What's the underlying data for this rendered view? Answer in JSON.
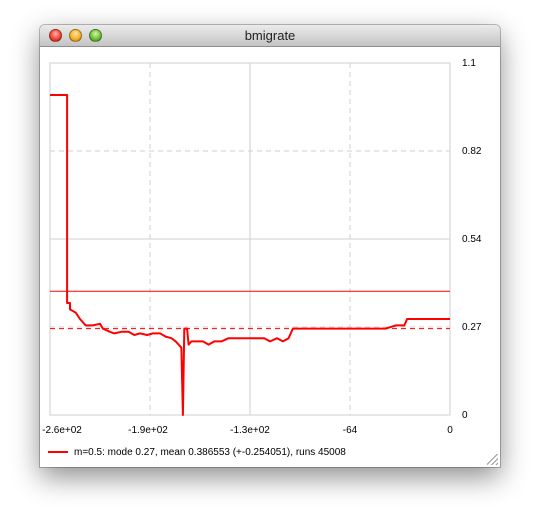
{
  "window": {
    "title": "bmigrate",
    "controls": [
      "close-button",
      "minimize-button",
      "zoom-button"
    ]
  },
  "chart_data": {
    "type": "line",
    "title": "",
    "xlabel": "",
    "ylabel": "",
    "x_ticks": [
      "-2.6e+02",
      "-1.9e+02",
      "-1.3e+02",
      "-64",
      "0"
    ],
    "y_ticks": [
      "0",
      "0.27",
      "0.54",
      "0.82",
      "1.1"
    ],
    "xlim": [
      -280,
      0
    ],
    "ylim": [
      0,
      1.1
    ],
    "grid": true,
    "series": [
      {
        "name": "m=0.5: mode 0.27, mean 0.386553 (+-0.254051), runs 45008",
        "color": "#ff0000",
        "points": [
          [
            -280,
            1.0
          ],
          [
            -268,
            1.0
          ],
          [
            -268,
            0.35
          ],
          [
            -266,
            0.35
          ],
          [
            -266,
            0.33
          ],
          [
            -262,
            0.32
          ],
          [
            -259,
            0.3
          ],
          [
            -255,
            0.28
          ],
          [
            -250,
            0.28
          ],
          [
            -245,
            0.285
          ],
          [
            -243,
            0.27
          ],
          [
            -238,
            0.26
          ],
          [
            -235,
            0.255
          ],
          [
            -230,
            0.26
          ],
          [
            -225,
            0.26
          ],
          [
            -221,
            0.25
          ],
          [
            -217,
            0.255
          ],
          [
            -212,
            0.25
          ],
          [
            -208,
            0.255
          ],
          [
            -203,
            0.255
          ],
          [
            -199,
            0.245
          ],
          [
            -195,
            0.24
          ],
          [
            -192,
            0.23
          ],
          [
            -190,
            0.22
          ],
          [
            -188,
            0.21
          ],
          [
            -187,
            0.0
          ],
          [
            -186,
            0.27
          ],
          [
            -184,
            0.27
          ],
          [
            -183,
            0.22
          ],
          [
            -181,
            0.23
          ],
          [
            -177,
            0.23
          ],
          [
            -173,
            0.23
          ],
          [
            -169,
            0.22
          ],
          [
            -165,
            0.23
          ],
          [
            -160,
            0.23
          ],
          [
            -155,
            0.24
          ],
          [
            -150,
            0.24
          ],
          [
            -145,
            0.24
          ],
          [
            -140,
            0.24
          ],
          [
            -135,
            0.24
          ],
          [
            -130,
            0.24
          ],
          [
            -126,
            0.23
          ],
          [
            -121,
            0.24
          ],
          [
            -117,
            0.23
          ],
          [
            -113,
            0.24
          ],
          [
            -110,
            0.27
          ],
          [
            -100,
            0.27
          ],
          [
            -80,
            0.27
          ],
          [
            -60,
            0.27
          ],
          [
            -45,
            0.27
          ],
          [
            -38,
            0.28
          ],
          [
            -32,
            0.28
          ],
          [
            -30,
            0.3
          ],
          [
            -20,
            0.3
          ],
          [
            -10,
            0.3
          ],
          [
            0,
            0.3
          ]
        ]
      }
    ],
    "reference_lines": [
      {
        "kind": "mean",
        "value": 0.386553,
        "style": "solid",
        "color": "#ff0000"
      },
      {
        "kind": "mode",
        "value": 0.27,
        "style": "dashed",
        "color": "#ff0000"
      }
    ]
  },
  "legend": {
    "label": "m=0.5: mode 0.27, mean 0.386553 (+-0.254051), runs 45008",
    "color": "#ff0000"
  }
}
